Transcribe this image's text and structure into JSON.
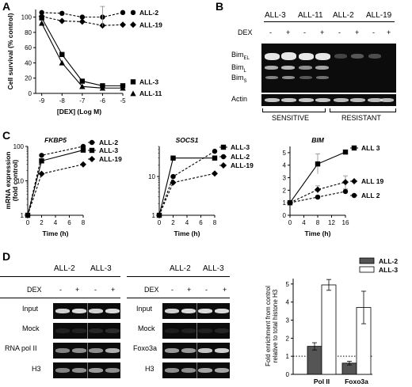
{
  "panels": {
    "A": {
      "label": "A"
    },
    "B": {
      "label": "B",
      "lanes": [
        "ALL-3",
        "ALL-11",
        "ALL-2",
        "ALL-19"
      ],
      "dex_label": "DEX",
      "dex_signs": [
        "-",
        "+",
        "-",
        "+",
        "-",
        "+",
        "-",
        "+"
      ],
      "bands": [
        "BimEL",
        "BimL",
        "BimS"
      ],
      "actin": "Actin",
      "groups": [
        "SENSITIVE",
        "RESISTANT"
      ]
    },
    "C": {
      "label": "C"
    },
    "D": {
      "label": "D",
      "lanes": [
        "ALL-2",
        "ALL-3"
      ],
      "dex_label": "DEX",
      "dex_signs": [
        "-",
        "+",
        "-",
        "+"
      ],
      "rows_left": [
        "Input",
        "Mock",
        "RNA pol II",
        "H3"
      ],
      "rows_right": [
        "Input",
        "Mock",
        "Foxo3a",
        "H3"
      ]
    }
  },
  "chart_data": [
    {
      "id": "A",
      "type": "line",
      "xlabel": "[DEX] (Log M)",
      "ylabel": "Cell survival (% control)",
      "x": [
        -9,
        -8,
        -7,
        -6,
        -5
      ],
      "xlim": [
        -9.3,
        -5
      ],
      "ylim": [
        0,
        110
      ],
      "yticks": [
        0,
        20,
        40,
        60,
        80,
        100
      ],
      "series": [
        {
          "name": "ALL-2",
          "marker": "circle",
          "dash": true,
          "values": [
            106,
            105,
            100,
            100,
            106
          ]
        },
        {
          "name": "ALL-19",
          "marker": "diamond",
          "dash": true,
          "values": [
            101,
            95,
            94,
            89,
            90
          ]
        },
        {
          "name": "ALL-3",
          "marker": "square",
          "dash": false,
          "values": [
            99,
            51,
            16,
            10,
            10
          ]
        },
        {
          "name": "ALL-11",
          "marker": "triangle",
          "dash": false,
          "values": [
            92,
            40,
            9,
            7,
            7
          ]
        }
      ]
    },
    {
      "id": "C1",
      "type": "line",
      "title": "FKBP5",
      "xlabel": "Time (h)",
      "ylabel": "mRNA expression (fold control)",
      "yscale": "log",
      "ylim": [
        1,
        100
      ],
      "yticks": [
        1,
        10,
        100
      ],
      "xticks": [
        0,
        2,
        4,
        6,
        8
      ],
      "xlim": [
        0,
        8
      ],
      "series": [
        {
          "name": "ALL-2",
          "marker": "circle",
          "dash": true,
          "x": [
            0,
            2,
            8
          ],
          "values": [
            1,
            55,
            100
          ]
        },
        {
          "name": "ALL-3",
          "marker": "square",
          "dash": false,
          "x": [
            0,
            2,
            8
          ],
          "values": [
            1,
            38,
            78
          ]
        },
        {
          "name": "ALL-19",
          "marker": "diamond",
          "dash": true,
          "x": [
            0,
            2,
            8
          ],
          "values": [
            1,
            16,
            30
          ]
        }
      ]
    },
    {
      "id": "C2",
      "type": "line",
      "title": "SOCS1",
      "xlabel": "Time (h)",
      "yscale": "log",
      "ylim": [
        1,
        60
      ],
      "yticks": [
        1,
        10
      ],
      "xticks": [
        0,
        2,
        4,
        6,
        8
      ],
      "xlim": [
        0,
        8
      ],
      "series": [
        {
          "name": "ALL-3",
          "marker": "square",
          "dash": false,
          "x": [
            0,
            2,
            8
          ],
          "values": [
            1,
            30,
            30
          ]
        },
        {
          "name": "ALL-2",
          "marker": "circle",
          "dash": true,
          "x": [
            0,
            2,
            8
          ],
          "values": [
            1,
            10,
            45
          ]
        },
        {
          "name": "ALL-19",
          "marker": "diamond",
          "dash": true,
          "x": [
            0,
            2,
            8
          ],
          "values": [
            1,
            7,
            12
          ]
        }
      ]
    },
    {
      "id": "C3",
      "type": "line",
      "title": "BIM",
      "xlabel": "Time (h)",
      "ylim": [
        0,
        5.5
      ],
      "yticks": [
        0,
        1,
        2,
        3,
        4,
        5
      ],
      "xticks": [
        0,
        4,
        8,
        12,
        16
      ],
      "xlim": [
        0,
        16
      ],
      "series": [
        {
          "name": "ALL 3",
          "marker": "square",
          "dash": false,
          "x": [
            0,
            8,
            16
          ],
          "values": [
            1,
            4.1,
            5.05
          ],
          "err": [
            0,
            0.8,
            0.1
          ]
        },
        {
          "name": "ALL 19",
          "marker": "diamond",
          "dash": true,
          "x": [
            0,
            8,
            16
          ],
          "values": [
            1,
            2.05,
            2.65
          ],
          "err": [
            0,
            0.3,
            0.5
          ]
        },
        {
          "name": "ALL 2",
          "marker": "circle",
          "dash": true,
          "x": [
            0,
            8,
            16
          ],
          "values": [
            1,
            1.45,
            1.9
          ],
          "err": [
            0,
            0.1,
            0.2
          ]
        }
      ]
    },
    {
      "id": "D",
      "type": "bar",
      "ylabel": "Fold enrichment from control relative to total histone H3",
      "categories": [
        "Pol II",
        "Foxo3a"
      ],
      "ylim": [
        0,
        5.3
      ],
      "yticks": [
        0,
        1,
        2,
        3,
        4,
        5
      ],
      "reference_line": 1,
      "legend": "top-right",
      "series": [
        {
          "name": "ALL-2",
          "color": "#555555",
          "values": [
            1.55,
            0.62
          ],
          "err": [
            0.2,
            0.1
          ]
        },
        {
          "name": "ALL-3",
          "color": "#ffffff",
          "values": [
            4.95,
            3.7
          ],
          "err": [
            0.3,
            0.9
          ]
        }
      ]
    }
  ]
}
